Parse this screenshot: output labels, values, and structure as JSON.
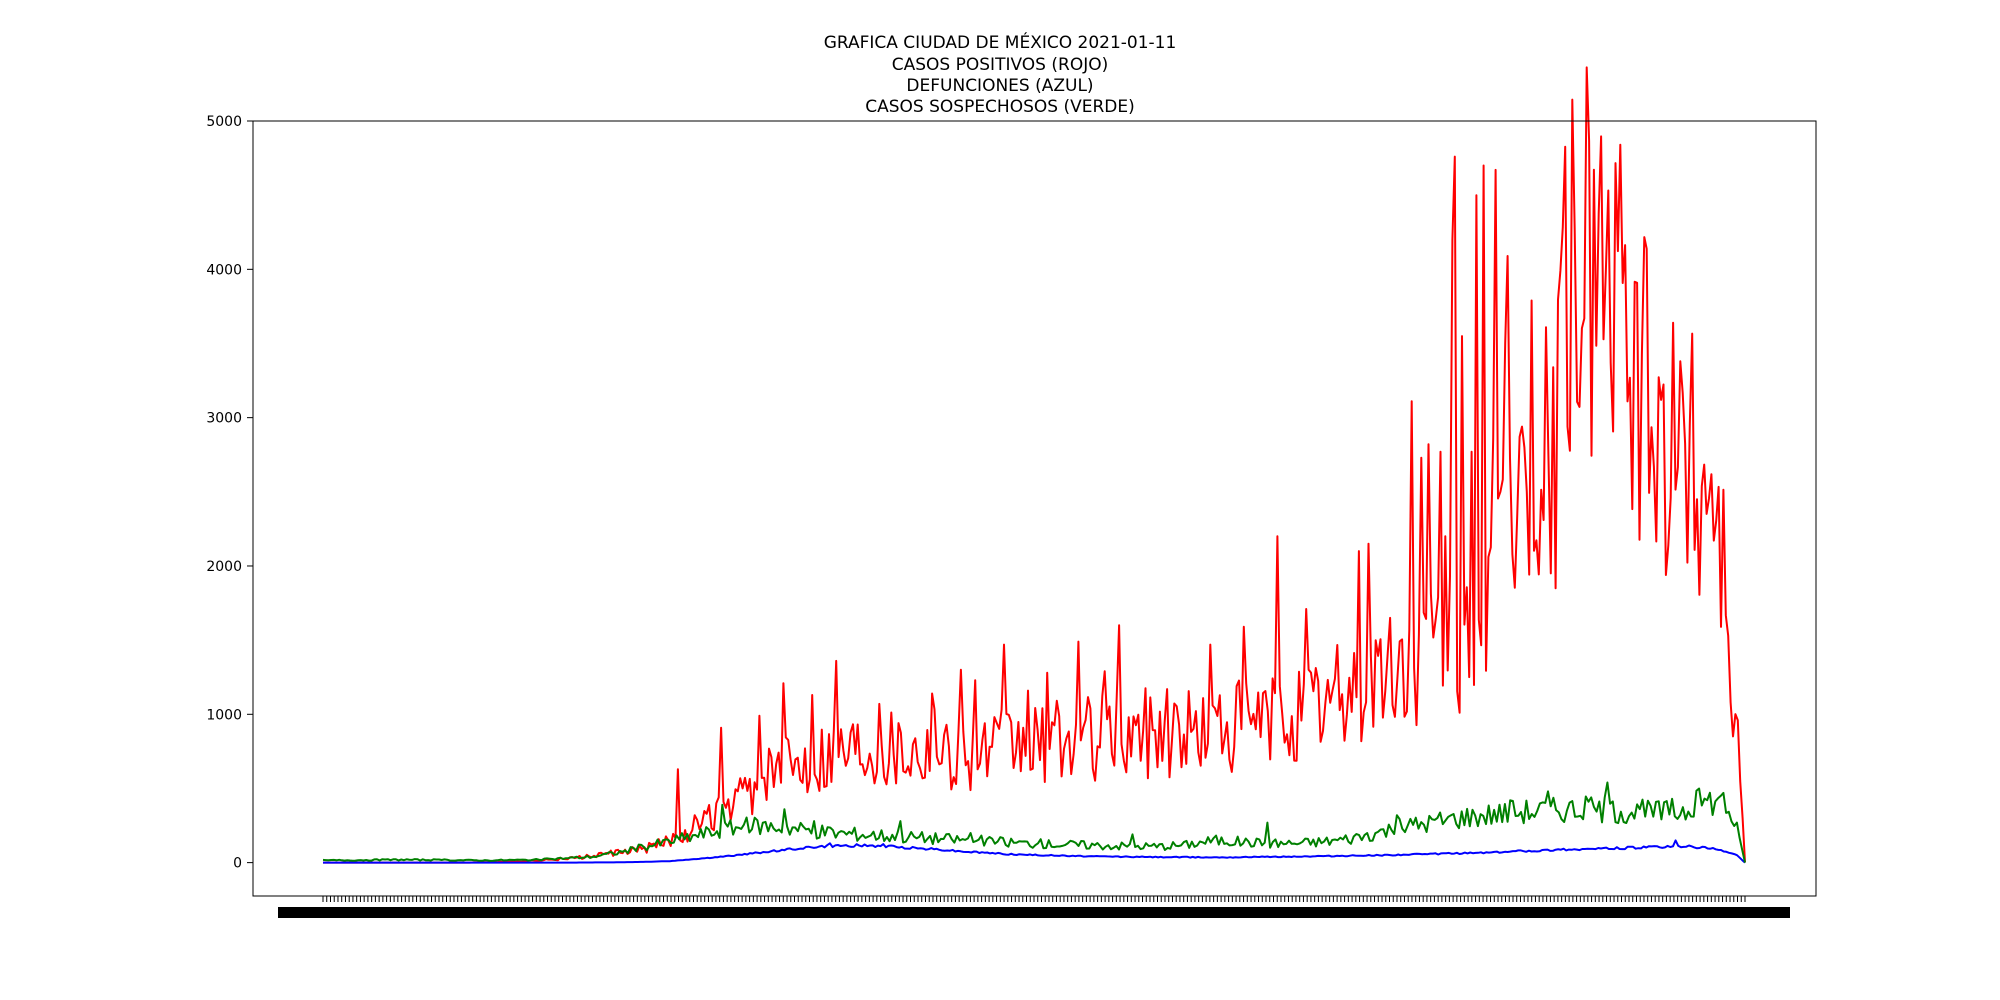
{
  "chart_data": {
    "type": "line",
    "title_lines": [
      "GRAFICA CIUDAD DE MÉXICO 2021-01-11",
      "CASOS POSITIVOS (ROJO)",
      "DEFUNCIONES (AZUL)",
      "CASOS SOSPECHOSOS (VERDE)"
    ],
    "xlabel": "",
    "ylabel": "",
    "ylim": [
      -225,
      5000
    ],
    "y_ticks": [
      0,
      1000,
      2000,
      3000,
      4000,
      5000
    ],
    "x_tick_labels_note": "x tick labels are dates overlapping into an unreadable band",
    "n_points": 381,
    "grid": false,
    "series": [
      {
        "color": "#ff0000",
        "anchors": [
          [
            0,
            0
          ],
          [
            60,
            0
          ],
          [
            80,
            8
          ],
          [
            90,
            15
          ],
          [
            100,
            25
          ],
          [
            110,
            40
          ],
          [
            120,
            60
          ],
          [
            130,
            80
          ],
          [
            140,
            120
          ],
          [
            150,
            200
          ],
          [
            160,
            280
          ],
          [
            170,
            380
          ],
          [
            180,
            500
          ],
          [
            190,
            620
          ],
          [
            200,
            700
          ],
          [
            210,
            760
          ],
          [
            220,
            800
          ],
          [
            230,
            820
          ],
          [
            240,
            800
          ],
          [
            250,
            780
          ],
          [
            260,
            760
          ],
          [
            270,
            750
          ],
          [
            280,
            760
          ],
          [
            290,
            780
          ],
          [
            300,
            800
          ],
          [
            310,
            820
          ],
          [
            320,
            830
          ],
          [
            330,
            850
          ],
          [
            340,
            870
          ],
          [
            350,
            880
          ],
          [
            360,
            880
          ],
          [
            370,
            900
          ],
          [
            380,
            920
          ],
          [
            390,
            950
          ],
          [
            400,
            980
          ],
          [
            410,
            1020
          ],
          [
            420,
            1080
          ],
          [
            430,
            1150
          ],
          [
            440,
            1250
          ],
          [
            450,
            1300
          ],
          [
            460,
            1400
          ],
          [
            470,
            1500
          ],
          [
            480,
            1600
          ],
          [
            490,
            1900
          ],
          [
            500,
            2300
          ],
          [
            505,
            2500
          ],
          [
            510,
            2700
          ],
          [
            515,
            3800
          ],
          [
            520,
            3900
          ],
          [
            525,
            4100
          ],
          [
            530,
            4200
          ],
          [
            535,
            4000
          ],
          [
            540,
            3700
          ],
          [
            545,
            3300
          ],
          [
            550,
            3200
          ],
          [
            555,
            2900
          ],
          [
            560,
            2800
          ],
          [
            565,
            2700
          ],
          [
            570,
            2800
          ],
          [
            575,
            2600
          ],
          [
            580,
            2700
          ],
          [
            585,
            1900
          ],
          [
            588,
            1200
          ],
          [
            590,
            800
          ],
          [
            592,
            300
          ],
          [
            593,
            0
          ]
        ],
        "spikes": [
          [
            148,
            630
          ],
          [
            166,
            910
          ],
          [
            182,
            990
          ],
          [
            192,
            1210
          ],
          [
            204,
            1130
          ],
          [
            214,
            1360
          ],
          [
            232,
            1070
          ],
          [
            254,
            1140
          ],
          [
            266,
            1300
          ],
          [
            272,
            1230
          ],
          [
            284,
            1470
          ],
          [
            294,
            1160
          ],
          [
            302,
            1280
          ],
          [
            315,
            1490
          ],
          [
            326,
            1290
          ],
          [
            332,
            1600
          ],
          [
            352,
            1170
          ],
          [
            370,
            1470
          ],
          [
            384,
            1590
          ],
          [
            398,
            2200
          ],
          [
            410,
            1710
          ],
          [
            432,
            2100
          ],
          [
            436,
            2150
          ],
          [
            454,
            3110
          ],
          [
            458,
            2730
          ],
          [
            461,
            2820
          ],
          [
            466,
            2770
          ],
          [
            468,
            2200
          ],
          [
            471,
            4200
          ],
          [
            472,
            4760
          ],
          [
            475,
            3550
          ],
          [
            479,
            2770
          ],
          [
            481,
            4500
          ],
          [
            484,
            4700
          ],
          [
            488,
            2860
          ],
          [
            489,
            4670
          ],
          [
            493,
            3500
          ],
          [
            494,
            4090
          ],
          [
            499,
            2870
          ],
          [
            500,
            2940
          ],
          [
            502,
            2500
          ],
          [
            504,
            3790
          ],
          [
            509,
            2310
          ],
          [
            510,
            3610
          ],
          [
            512,
            1950
          ],
          [
            514,
            1850
          ]
        ],
        "noise_amplitude": 0.35
      },
      {
        "color": "#0000ff",
        "anchors": [
          [
            0,
            0
          ],
          [
            90,
            0
          ],
          [
            110,
            2
          ],
          [
            120,
            5
          ],
          [
            130,
            10
          ],
          [
            140,
            25
          ],
          [
            150,
            40
          ],
          [
            160,
            60
          ],
          [
            170,
            80
          ],
          [
            180,
            100
          ],
          [
            190,
            110
          ],
          [
            200,
            115
          ],
          [
            210,
            110
          ],
          [
            220,
            100
          ],
          [
            230,
            90
          ],
          [
            240,
            75
          ],
          [
            250,
            65
          ],
          [
            260,
            55
          ],
          [
            270,
            50
          ],
          [
            280,
            45
          ],
          [
            290,
            42
          ],
          [
            300,
            40
          ],
          [
            310,
            38
          ],
          [
            320,
            37
          ],
          [
            330,
            36
          ],
          [
            340,
            36
          ],
          [
            350,
            38
          ],
          [
            360,
            40
          ],
          [
            370,
            42
          ],
          [
            380,
            45
          ],
          [
            390,
            48
          ],
          [
            400,
            52
          ],
          [
            410,
            56
          ],
          [
            420,
            60
          ],
          [
            430,
            65
          ],
          [
            440,
            70
          ],
          [
            450,
            78
          ],
          [
            460,
            85
          ],
          [
            470,
            90
          ],
          [
            480,
            95
          ],
          [
            490,
            100
          ],
          [
            500,
            105
          ],
          [
            510,
            110
          ],
          [
            515,
            105
          ],
          [
            520,
            95
          ],
          [
            525,
            80
          ],
          [
            530,
            50
          ],
          [
            533,
            0
          ]
        ],
        "spikes": [
          [
            190,
            130
          ],
          [
            210,
            125
          ],
          [
            507,
            150
          ]
        ],
        "noise_amplitude": 0.08
      },
      {
        "color": "#008000",
        "anchors": [
          [
            0,
            15
          ],
          [
            30,
            20
          ],
          [
            60,
            15
          ],
          [
            80,
            20
          ],
          [
            100,
            40
          ],
          [
            110,
            70
          ],
          [
            120,
            110
          ],
          [
            130,
            150
          ],
          [
            140,
            190
          ],
          [
            150,
            230
          ],
          [
            160,
            250
          ],
          [
            170,
            240
          ],
          [
            180,
            220
          ],
          [
            190,
            200
          ],
          [
            200,
            190
          ],
          [
            210,
            180
          ],
          [
            220,
            170
          ],
          [
            230,
            160
          ],
          [
            240,
            150
          ],
          [
            250,
            140
          ],
          [
            260,
            130
          ],
          [
            270,
            125
          ],
          [
            280,
            120
          ],
          [
            290,
            115
          ],
          [
            300,
            110
          ],
          [
            310,
            110
          ],
          [
            320,
            120
          ],
          [
            330,
            150
          ],
          [
            340,
            140
          ],
          [
            350,
            130
          ],
          [
            360,
            130
          ],
          [
            370,
            140
          ],
          [
            380,
            160
          ],
          [
            390,
            200
          ],
          [
            400,
            240
          ],
          [
            410,
            270
          ],
          [
            420,
            300
          ],
          [
            430,
            320
          ],
          [
            440,
            340
          ],
          [
            450,
            350
          ],
          [
            460,
            360
          ],
          [
            470,
            360
          ],
          [
            480,
            350
          ],
          [
            490,
            340
          ],
          [
            500,
            340
          ],
          [
            505,
            360
          ],
          [
            510,
            400
          ],
          [
            515,
            420
          ],
          [
            520,
            380
          ],
          [
            524,
            250
          ],
          [
            527,
            0
          ]
        ],
        "spikes": [
          [
            148,
            390
          ],
          [
            171,
            360
          ],
          [
            182,
            280
          ],
          [
            214,
            280
          ],
          [
            240,
            200
          ],
          [
            300,
            190
          ],
          [
            350,
            270
          ],
          [
            398,
            320
          ],
          [
            440,
            420
          ],
          [
            454,
            480
          ],
          [
            470,
            440
          ],
          [
            476,
            540
          ],
          [
            500,
            430
          ],
          [
            510,
            500
          ],
          [
            519,
            470
          ]
        ],
        "noise_amplitude": 0.25
      }
    ]
  }
}
